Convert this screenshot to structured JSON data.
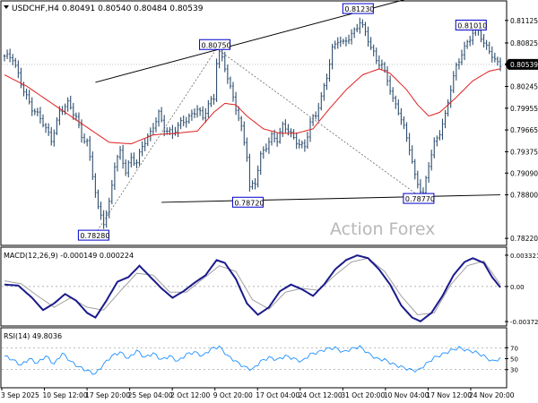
{
  "header": {
    "symbol_text": "USDCHF,H4",
    "ohlc_text": "0.80491 0.80540 0.80484 0.80539"
  },
  "watermark": "Action Forex",
  "colors": {
    "bars": "#2f4f6f",
    "moving_average": "#e02020",
    "macd_main": "#1a1a8c",
    "macd_signal": "#a0a0a0",
    "rsi_line": "#1e90ff",
    "trendline": "#000000",
    "projection": "#555555",
    "label_border": "#0000cc",
    "price_tag_bg": "#000000",
    "price_tag_text": "#ffffff"
  },
  "chart_data": [
    {
      "type": "bar",
      "name": "price",
      "ylim": [
        0.7815,
        0.8135
      ],
      "y_tick_labels": [
        "0.81125",
        "0.80825",
        "0.80539",
        "0.80245",
        "0.79955",
        "0.79665",
        "0.79375",
        "0.79090",
        "0.78800",
        "0.78220"
      ],
      "y_tick_values": [
        0.81125,
        0.80825,
        0.80539,
        0.80245,
        0.79955,
        0.79665,
        0.79375,
        0.7909,
        0.788,
        0.7822
      ],
      "current_price_label": "0.80539",
      "current_price": 0.80539,
      "series_points": [
        [
          0,
          0.8065
        ],
        [
          3,
          0.806
        ],
        [
          6,
          0.803
        ],
        [
          10,
          0.7995
        ],
        [
          14,
          0.7975
        ],
        [
          17,
          0.7955
        ],
        [
          20,
          0.799
        ],
        [
          23,
          0.8
        ],
        [
          26,
          0.7985
        ],
        [
          28,
          0.796
        ],
        [
          30,
          0.795
        ],
        [
          32,
          0.7905
        ],
        [
          34,
          0.786
        ],
        [
          36,
          0.7845
        ],
        [
          38,
          0.787
        ],
        [
          40,
          0.792
        ],
        [
          42,
          0.7935
        ],
        [
          44,
          0.791
        ],
        [
          46,
          0.793
        ],
        [
          48,
          0.7925
        ],
        [
          50,
          0.7945
        ],
        [
          53,
          0.796
        ],
        [
          56,
          0.799
        ],
        [
          58,
          0.797
        ],
        [
          61,
          0.796
        ],
        [
          64,
          0.7975
        ],
        [
          67,
          0.7985
        ],
        [
          70,
          0.7995
        ],
        [
          72,
          0.798
        ],
        [
          74,
          0.8
        ],
        [
          76,
          0.801
        ],
        [
          77,
          0.806
        ],
        [
          78,
          0.8075
        ],
        [
          80,
          0.805
        ],
        [
          82,
          0.802
        ],
        [
          84,
          0.7995
        ],
        [
          86,
          0.797
        ],
        [
          88,
          0.7935
        ],
        [
          89,
          0.789
        ],
        [
          91,
          0.7895
        ],
        [
          93,
          0.793
        ],
        [
          95,
          0.7945
        ],
        [
          97,
          0.796
        ],
        [
          99,
          0.7955
        ],
        [
          101,
          0.797
        ],
        [
          103,
          0.7965
        ],
        [
          105,
          0.7955
        ],
        [
          107,
          0.795
        ],
        [
          109,
          0.7945
        ],
        [
          111,
          0.7975
        ],
        [
          113,
          0.7985
        ],
        [
          115,
          0.801
        ],
        [
          117,
          0.804
        ],
        [
          119,
          0.8075
        ],
        [
          121,
          0.8085
        ],
        [
          123,
          0.808
        ],
        [
          125,
          0.809
        ],
        [
          127,
          0.81
        ],
        [
          129,
          0.8112
        ],
        [
          131,
          0.8095
        ],
        [
          133,
          0.8075
        ],
        [
          135,
          0.806
        ],
        [
          137,
          0.8055
        ],
        [
          139,
          0.8035
        ],
        [
          141,
          0.8005
        ],
        [
          143,
          0.799
        ],
        [
          145,
          0.797
        ],
        [
          147,
          0.7945
        ],
        [
          149,
          0.7905
        ],
        [
          151,
          0.7885
        ],
        [
          152,
          0.7878
        ],
        [
          154,
          0.792
        ],
        [
          156,
          0.795
        ],
        [
          158,
          0.7965
        ],
        [
          160,
          0.7985
        ],
        [
          162,
          0.802
        ],
        [
          164,
          0.805
        ],
        [
          166,
          0.807
        ],
        [
          168,
          0.8085
        ],
        [
          170,
          0.8095
        ],
        [
          172,
          0.8098
        ],
        [
          174,
          0.808
        ],
        [
          176,
          0.8075
        ],
        [
          178,
          0.806
        ],
        [
          180,
          0.8054
        ]
      ],
      "moving_average_points": [
        [
          0,
          0.804
        ],
        [
          8,
          0.8025
        ],
        [
          16,
          0.8005
        ],
        [
          22,
          0.799
        ],
        [
          30,
          0.797
        ],
        [
          38,
          0.795
        ],
        [
          46,
          0.7948
        ],
        [
          54,
          0.796
        ],
        [
          62,
          0.7962
        ],
        [
          70,
          0.7965
        ],
        [
          76,
          0.799
        ],
        [
          80,
          0.8002
        ],
        [
          84,
          0.8
        ],
        [
          88,
          0.7985
        ],
        [
          94,
          0.7968
        ],
        [
          100,
          0.7962
        ],
        [
          106,
          0.7962
        ],
        [
          112,
          0.7968
        ],
        [
          118,
          0.7995
        ],
        [
          124,
          0.802
        ],
        [
          130,
          0.804
        ],
        [
          136,
          0.8048
        ],
        [
          140,
          0.8042
        ],
        [
          146,
          0.802
        ],
        [
          150,
          0.8
        ],
        [
          154,
          0.7985
        ],
        [
          158,
          0.799
        ],
        [
          164,
          0.801
        ],
        [
          170,
          0.8032
        ],
        [
          176,
          0.8045
        ],
        [
          180,
          0.8048
        ]
      ],
      "point_labels": [
        {
          "text": "0.78280",
          "bar": 33,
          "value": 0.7828
        },
        {
          "text": "0.80750",
          "bar": 77,
          "value": 0.8075
        },
        {
          "text": "0.78720",
          "bar": 89,
          "value": 0.7872
        },
        {
          "text": "0.81230",
          "bar": 129,
          "value": 0.8123
        },
        {
          "text": "0.78770",
          "bar": 151,
          "value": 0.7877
        },
        {
          "text": "0.81010",
          "bar": 170,
          "value": 0.8101
        }
      ],
      "trendlines": [
        {
          "style": "solid",
          "from": [
            33,
            0.803
          ],
          "to": [
            150,
            0.8145
          ]
        },
        {
          "style": "solid",
          "from": [
            57,
            0.787
          ],
          "to": [
            180,
            0.788
          ]
        },
        {
          "style": "dashed",
          "from": [
            33,
            0.7828
          ],
          "to": [
            77,
            0.8075
          ]
        },
        {
          "style": "dashed",
          "from": [
            77,
            0.8075
          ],
          "to": [
            151,
            0.7877
          ]
        }
      ]
    },
    {
      "type": "line",
      "name": "macd",
      "label": "MACD(12,26,9) -0.000149 0.000224",
      "ylim": [
        -0.004,
        0.0036
      ],
      "y_tick_labels": [
        "0.003321",
        "0.00",
        "-0.003723"
      ],
      "y_tick_values": [
        0.003321,
        0.0,
        -0.003723
      ],
      "main_points": [
        [
          0,
          0.0002
        ],
        [
          5,
          0.0001
        ],
        [
          10,
          -0.0012
        ],
        [
          14,
          -0.0025
        ],
        [
          18,
          -0.0018
        ],
        [
          22,
          -0.0008
        ],
        [
          26,
          -0.0015
        ],
        [
          30,
          -0.0028
        ],
        [
          33,
          -0.0033
        ],
        [
          37,
          -0.0015
        ],
        [
          41,
          0.0005
        ],
        [
          45,
          0.001
        ],
        [
          49,
          0.0022
        ],
        [
          53,
          0.001
        ],
        [
          57,
          -0.0002
        ],
        [
          61,
          -0.0012
        ],
        [
          65,
          -0.0005
        ],
        [
          69,
          0.0004
        ],
        [
          73,
          0.0012
        ],
        [
          77,
          0.0028
        ],
        [
          80,
          0.0025
        ],
        [
          84,
          0.0008
        ],
        [
          88,
          -0.0018
        ],
        [
          92,
          -0.003
        ],
        [
          96,
          -0.0022
        ],
        [
          100,
          -0.0005
        ],
        [
          104,
          0.0002
        ],
        [
          108,
          -0.0003
        ],
        [
          112,
          -0.001
        ],
        [
          116,
          0.0002
        ],
        [
          120,
          0.0018
        ],
        [
          124,
          0.0028
        ],
        [
          128,
          0.0033
        ],
        [
          132,
          0.003
        ],
        [
          136,
          0.0018
        ],
        [
          140,
          0.0002
        ],
        [
          144,
          -0.002
        ],
        [
          148,
          -0.0033
        ],
        [
          151,
          -0.0037
        ],
        [
          155,
          -0.0028
        ],
        [
          159,
          -0.001
        ],
        [
          163,
          0.0012
        ],
        [
          167,
          0.0026
        ],
        [
          170,
          0.003
        ],
        [
          174,
          0.0025
        ],
        [
          177,
          0.001
        ],
        [
          180,
          -0.0001
        ]
      ],
      "signal_points": [
        [
          0,
          0.0006
        ],
        [
          6,
          0.0003
        ],
        [
          12,
          -0.001
        ],
        [
          18,
          -0.0022
        ],
        [
          24,
          -0.0012
        ],
        [
          30,
          -0.0022
        ],
        [
          36,
          -0.0025
        ],
        [
          42,
          -0.0005
        ],
        [
          48,
          0.0014
        ],
        [
          54,
          0.0012
        ],
        [
          60,
          -0.0006
        ],
        [
          66,
          -0.0006
        ],
        [
          72,
          0.0008
        ],
        [
          78,
          0.0022
        ],
        [
          84,
          0.0016
        ],
        [
          90,
          -0.0014
        ],
        [
          96,
          -0.0024
        ],
        [
          102,
          -0.0006
        ],
        [
          108,
          -0.0002
        ],
        [
          114,
          -0.0004
        ],
        [
          120,
          0.0012
        ],
        [
          126,
          0.0026
        ],
        [
          132,
          0.003
        ],
        [
          138,
          0.0016
        ],
        [
          144,
          -0.001
        ],
        [
          150,
          -0.003
        ],
        [
          156,
          -0.0028
        ],
        [
          162,
          0.0002
        ],
        [
          168,
          0.0022
        ],
        [
          174,
          0.0027
        ],
        [
          180,
          0.0002
        ]
      ]
    },
    {
      "type": "line",
      "name": "rsi",
      "label": "RSI(14) 49.8036",
      "ylim": [
        0,
        100
      ],
      "y_tick_labels": [
        "70",
        "50",
        "30"
      ],
      "y_tick_values": [
        70,
        50,
        30
      ],
      "points": [
        [
          0,
          55
        ],
        [
          3,
          48
        ],
        [
          6,
          38
        ],
        [
          9,
          50
        ],
        [
          12,
          42
        ],
        [
          15,
          55
        ],
        [
          18,
          40
        ],
        [
          21,
          60
        ],
        [
          24,
          45
        ],
        [
          27,
          35
        ],
        [
          30,
          28
        ],
        [
          33,
          22
        ],
        [
          36,
          40
        ],
        [
          39,
          55
        ],
        [
          42,
          62
        ],
        [
          45,
          50
        ],
        [
          48,
          65
        ],
        [
          51,
          52
        ],
        [
          54,
          60
        ],
        [
          57,
          48
        ],
        [
          60,
          55
        ],
        [
          63,
          45
        ],
        [
          66,
          58
        ],
        [
          69,
          62
        ],
        [
          72,
          55
        ],
        [
          75,
          68
        ],
        [
          78,
          72
        ],
        [
          81,
          55
        ],
        [
          84,
          45
        ],
        [
          87,
          35
        ],
        [
          90,
          30
        ],
        [
          93,
          45
        ],
        [
          96,
          52
        ],
        [
          99,
          48
        ],
        [
          102,
          55
        ],
        [
          105,
          50
        ],
        [
          108,
          45
        ],
        [
          111,
          58
        ],
        [
          114,
          62
        ],
        [
          117,
          68
        ],
        [
          120,
          70
        ],
        [
          123,
          62
        ],
        [
          126,
          68
        ],
        [
          129,
          72
        ],
        [
          132,
          60
        ],
        [
          135,
          50
        ],
        [
          138,
          48
        ],
        [
          141,
          40
        ],
        [
          144,
          35
        ],
        [
          147,
          30
        ],
        [
          150,
          28
        ],
        [
          153,
          40
        ],
        [
          156,
          52
        ],
        [
          159,
          58
        ],
        [
          162,
          65
        ],
        [
          165,
          70
        ],
        [
          168,
          65
        ],
        [
          171,
          62
        ],
        [
          174,
          55
        ],
        [
          177,
          45
        ],
        [
          180,
          50
        ]
      ]
    }
  ],
  "x_axis": {
    "labels": [
      "3 Sep 2025",
      "10 Sep 12:00",
      "17 Sep 20:00",
      "25 Sep 04:00",
      "2 Oct 12:00",
      "9 Oct 20:00",
      "17 Oct 04:00",
      "24 Oct 12:00",
      "31 Oct 20:00",
      "10 Nov 04:00",
      "17 Nov 12:00",
      "24 Nov 20:00"
    ],
    "label_bars": [
      0,
      22,
      44,
      66,
      88,
      110,
      132,
      154,
      176,
      198,
      220,
      242
    ],
    "bar_count": 181
  }
}
